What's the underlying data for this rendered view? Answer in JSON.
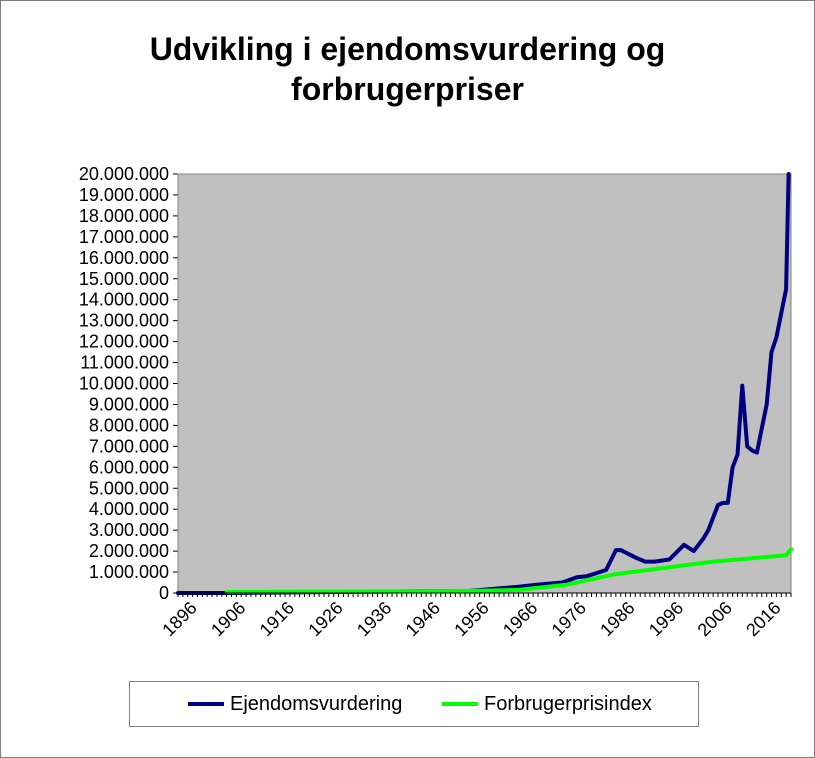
{
  "chart_data": {
    "type": "line",
    "title_lines": [
      "Udvikling i ejendomsvurdering og",
      "forbrugerpriser"
    ],
    "xlabel": "",
    "ylabel": "",
    "xlim": [
      1896,
      2022
    ],
    "ylim": [
      0,
      20000000
    ],
    "x_tick_labels": [
      "1896",
      "1906",
      "1916",
      "1926",
      "1936",
      "1946",
      "1956",
      "1966",
      "1976",
      "1986",
      "1996",
      "2006",
      "2016"
    ],
    "y_tick_labels": [
      "0",
      "1.000.000",
      "2.000.000",
      "3.000.000",
      "4.000.000",
      "5.000.000",
      "6.000.000",
      "7.000.000",
      "8.000.000",
      "9.000.000",
      "10.000.000",
      "11.000.000",
      "12.000.000",
      "13.000.000",
      "14.000.000",
      "15.000.000",
      "16.000.000",
      "17.000.000",
      "18.000.000",
      "19.000.000",
      "20.000.000"
    ],
    "grid": false,
    "legend_position": "bottom",
    "plot_background": "#c0c0c0",
    "series": [
      {
        "name": "Ejendomsvurdering",
        "color": "#000080",
        "x": [
          1896,
          1906,
          1956,
          1966,
          1970,
          1975,
          1978,
          1980,
          1982,
          1984,
          1986,
          1987,
          1990,
          1992,
          1994,
          1997,
          2000,
          2002,
          2004,
          2005,
          2007,
          2008,
          2009,
          2010,
          2011,
          2012,
          2013,
          2014,
          2015,
          2017,
          2018,
          2019,
          2021,
          2021.5
        ],
        "y": [
          0,
          0,
          100000,
          300000,
          400000,
          500000,
          750000,
          800000,
          950000,
          1100000,
          2050000,
          2050000,
          1700000,
          1500000,
          1500000,
          1600000,
          2300000,
          2000000,
          2600000,
          3000000,
          4200000,
          4300000,
          4300000,
          6000000,
          6600000,
          9900000,
          7000000,
          6800000,
          6700000,
          9000000,
          11500000,
          12200000,
          14500000,
          20000000
        ]
      },
      {
        "name": "Forbrugerprisindex",
        "color": "#00ff00",
        "x": [
          1906,
          1940,
          1956,
          1966,
          1976,
          1986,
          1996,
          2006,
          2016,
          2021,
          2022
        ],
        "y": [
          50000,
          70000,
          100000,
          150000,
          400000,
          900000,
          1200000,
          1500000,
          1700000,
          1800000,
          2100000
        ]
      }
    ]
  }
}
